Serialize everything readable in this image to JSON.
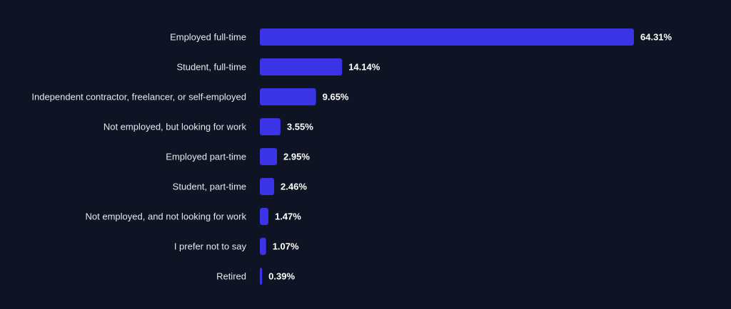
{
  "chart_data": {
    "type": "bar",
    "orientation": "horizontal",
    "title": "",
    "xlabel": "",
    "ylabel": "",
    "categories": [
      "Employed full-time",
      "Student, full-time",
      "Independent contractor, freelancer, or self-employed",
      "Not employed, but looking for work",
      "Employed part-time",
      "Student, part-time",
      "Not employed, and not looking for work",
      "I prefer not to say",
      "Retired"
    ],
    "values": [
      64.31,
      14.14,
      9.65,
      3.55,
      2.95,
      2.46,
      1.47,
      1.07,
      0.39
    ],
    "value_labels": [
      "64.31%",
      "14.14%",
      "9.65%",
      "3.55%",
      "2.95%",
      "2.46%",
      "1.47%",
      "1.07%",
      "0.39%"
    ],
    "xlim": [
      0,
      64.31
    ],
    "grid": false,
    "legend": "none",
    "colors": {
      "bar": "#3b34e6",
      "background": "#0f1424",
      "category_text": "#e6e8ee",
      "value_text": "#ffffff"
    }
  }
}
